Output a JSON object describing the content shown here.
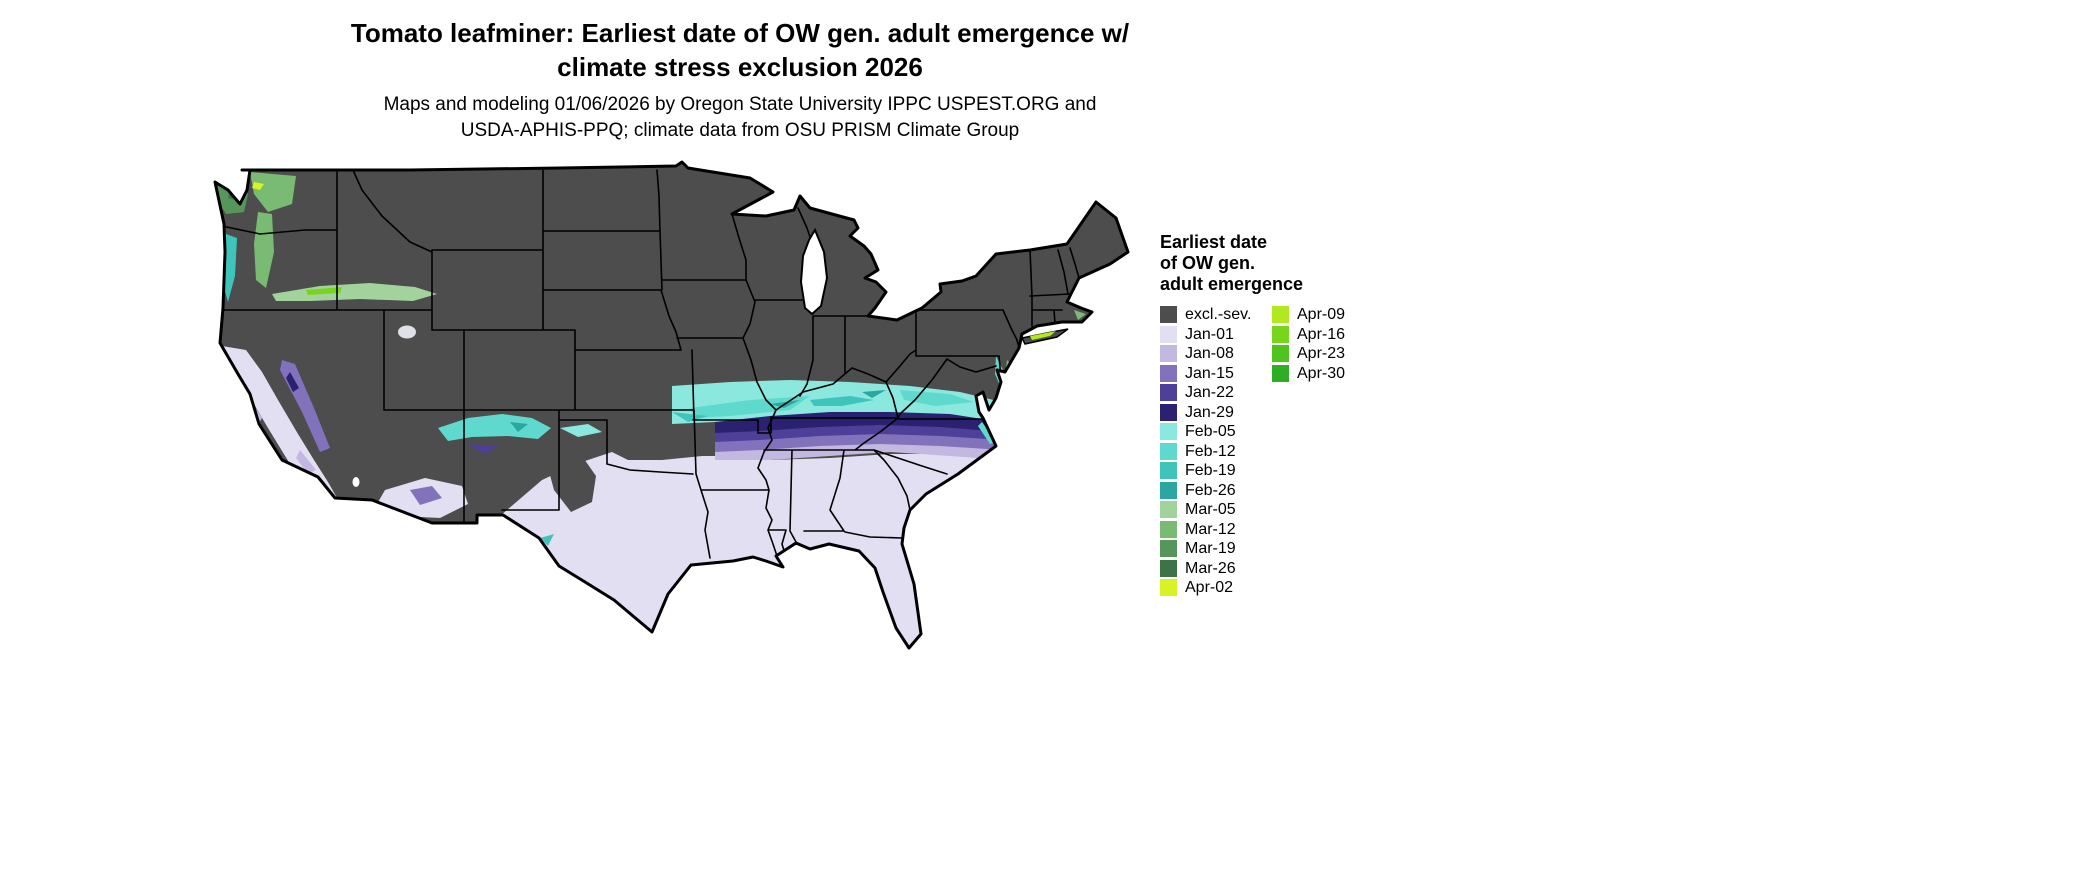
{
  "title": {
    "line1": "Tomato leafminer: Earliest date of OW gen. adult emergence w/",
    "line2": "climate stress exclusion 2026"
  },
  "subtitle": {
    "line1": "Maps and modeling 01/06/2026 by Oregon State University IPPC USPEST.ORG and",
    "line2": "USDA-APHIS-PPQ; climate data from OSU PRISM Climate Group"
  },
  "legend": {
    "title_lines": [
      "Earliest date",
      "of OW gen.",
      "adult emergence"
    ],
    "column1": [
      {
        "label": "excl.-sev.",
        "color": "#4D4D4D"
      },
      {
        "label": "Jan-01",
        "color": "#E3DFF2"
      },
      {
        "label": "Jan-08",
        "color": "#C3B8E0"
      },
      {
        "label": "Jan-15",
        "color": "#8272BC"
      },
      {
        "label": "Jan-22",
        "color": "#4E3F99"
      },
      {
        "label": "Jan-29",
        "color": "#2A2270"
      },
      {
        "label": "Feb-05",
        "color": "#8BE8DF"
      },
      {
        "label": "Feb-12",
        "color": "#5FD9CE"
      },
      {
        "label": "Feb-19",
        "color": "#3FC4BC"
      },
      {
        "label": "Feb-26",
        "color": "#2BA6A0"
      },
      {
        "label": "Mar-05",
        "color": "#A3D39C"
      },
      {
        "label": "Mar-12",
        "color": "#7ABB74"
      },
      {
        "label": "Mar-19",
        "color": "#57965A"
      },
      {
        "label": "Mar-26",
        "color": "#3C7347"
      },
      {
        "label": "Apr-02",
        "color": "#D9F224"
      }
    ],
    "column2": [
      {
        "label": "Apr-09",
        "color": "#B0E920"
      },
      {
        "label": "Apr-16",
        "color": "#77D61C"
      },
      {
        "label": "Apr-23",
        "color": "#4FC41E"
      },
      {
        "label": "Apr-30",
        "color": "#2FAD24"
      }
    ]
  },
  "map_data": {
    "type": "choropleth",
    "region": "Continental United States with state boundaries",
    "variable": "Earliest date of overwintering generation adult emergence, 2026",
    "classes": [
      "excl.-sev.",
      "Jan-01",
      "Jan-08",
      "Jan-15",
      "Jan-22",
      "Jan-29",
      "Feb-05",
      "Feb-12",
      "Feb-19",
      "Feb-26",
      "Mar-05",
      "Mar-12",
      "Mar-19",
      "Mar-26",
      "Apr-02",
      "Apr-09",
      "Apr-16",
      "Apr-23",
      "Apr-30"
    ],
    "summary": [
      {
        "area": "Northern and central US (most of map)",
        "class": "excl.-sev."
      },
      {
        "area": "Texas south, Gulf Coast states, Florida, southern Atlantic coastal plain, coastal/central California, southern Arizona",
        "class": "Jan-01"
      },
      {
        "area": "Band across northern Mississippi/Alabama/Georgia, southern Tennessee, into the Carolinas; Sierra Nevada foothills",
        "class": "Jan-08 to Jan-29"
      },
      {
        "area": "Band across Kentucky/Tennessee into Virginia and mid-Atlantic coast; central Arizona mottling",
        "class": "Feb-05 to Feb-26"
      },
      {
        "area": "Western Washington, Oregon valleys, Snake River Plain streak",
        "class": "Mar-05 to Mar-26"
      },
      {
        "area": "Scattered coastal northeast spots (Long Island, Cape Cod, Delmarva)",
        "class": "Apr-02 to Apr-30"
      }
    ]
  }
}
